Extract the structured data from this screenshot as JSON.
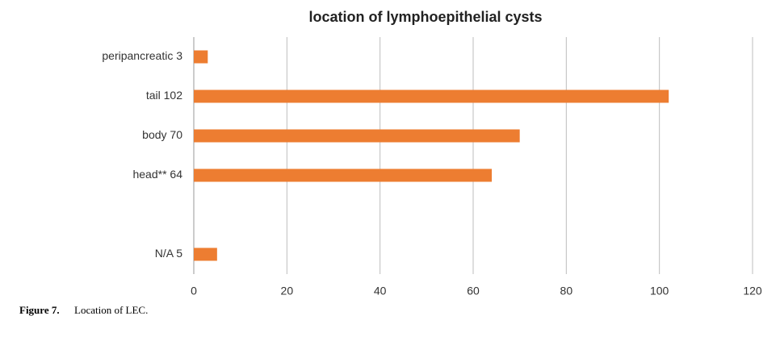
{
  "chart_data": {
    "type": "hbar",
    "title": "location of lymphoepithelial cysts",
    "categories": [
      "peripancreatic 3",
      "tail  102",
      "body  70",
      "head** 64",
      null,
      "N/A  5"
    ],
    "values": [
      3,
      102,
      70,
      64,
      null,
      5
    ],
    "color": "#ed7d31",
    "xlim": [
      0,
      120
    ],
    "xticks": [
      0,
      20,
      40,
      60,
      80,
      100,
      120
    ],
    "grid": true
  },
  "caption": {
    "label": "Figure 7.",
    "text": "Location of LEC."
  }
}
